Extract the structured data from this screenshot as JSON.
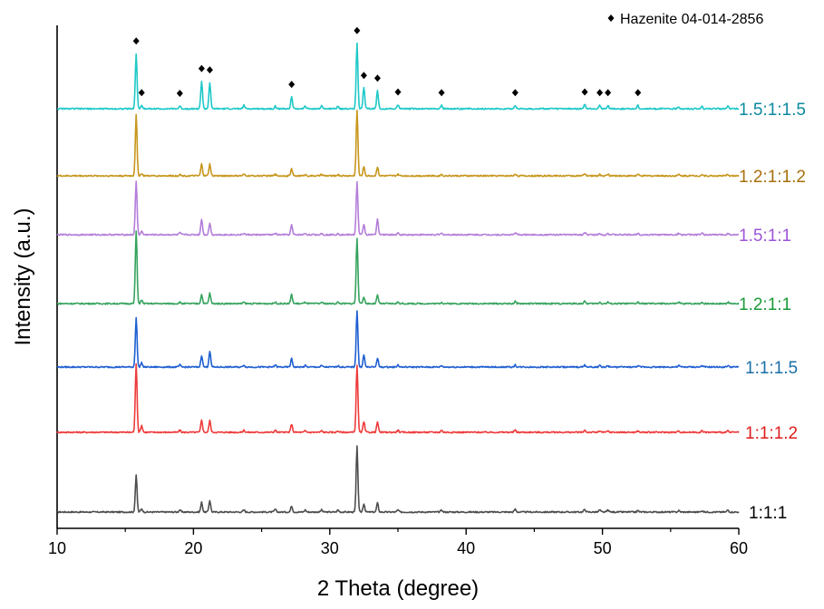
{
  "chart_data": {
    "type": "line",
    "title": "",
    "xlabel": "2 Theta (degree)",
    "ylabel": "Intensity (a.u.)",
    "xlim": [
      10,
      60
    ],
    "xticks": [
      "10",
      "20",
      "30",
      "40",
      "50",
      "60"
    ],
    "ytick_labels_shown": false,
    "grid": false,
    "offset_stacked": true,
    "legend": {
      "position": "top-right",
      "marker": "diamond",
      "label": "Hazenite 04-014-2856",
      "color": "#000000"
    },
    "reference_peaks": {
      "name": "Hazenite 04-014-2856",
      "two_theta": [
        15.8,
        16.2,
        19.0,
        20.6,
        21.2,
        27.2,
        32.0,
        32.5,
        33.5,
        35.0,
        38.2,
        43.6,
        48.7,
        49.8,
        50.4,
        52.6
      ]
    },
    "peaks_two_theta": [
      15.8,
      16.2,
      19.0,
      20.6,
      21.2,
      23.7,
      26.0,
      27.2,
      28.2,
      29.4,
      30.6,
      32.0,
      32.5,
      33.5,
      35.0,
      38.2,
      43.6,
      48.7,
      49.8,
      50.4,
      52.6,
      55.6,
      57.3,
      59.2
    ],
    "series": [
      {
        "name": "1:1:1",
        "color": "#4d4d4d",
        "peak_intensity": [
          0.53,
          0.05,
          0.03,
          0.14,
          0.17,
          0.03,
          0.04,
          0.09,
          0.03,
          0.03,
          0.03,
          0.95,
          0.12,
          0.13,
          0.03,
          0.03,
          0.04,
          0.04,
          0.03,
          0.03,
          0.02,
          0.02,
          0.02,
          0.03
        ]
      },
      {
        "name": "1:1:1.2",
        "color": "#ee3b3b",
        "peak_intensity": [
          1.0,
          0.1,
          0.03,
          0.18,
          0.17,
          0.03,
          0.03,
          0.12,
          0.02,
          0.02,
          0.02,
          0.98,
          0.15,
          0.15,
          0.03,
          0.03,
          0.03,
          0.03,
          0.02,
          0.02,
          0.02,
          0.02,
          0.02,
          0.02
        ]
      },
      {
        "name": "1:1:1.5",
        "color": "#1f5fd1",
        "peak_intensity": [
          0.72,
          0.06,
          0.03,
          0.17,
          0.23,
          0.03,
          0.03,
          0.12,
          0.02,
          0.02,
          0.02,
          0.82,
          0.17,
          0.13,
          0.03,
          0.02,
          0.03,
          0.03,
          0.02,
          0.02,
          0.02,
          0.02,
          0.02,
          0.02
        ]
      },
      {
        "name": "1.2:1:1",
        "color": "#36a35e",
        "peak_intensity": [
          1.05,
          0.05,
          0.02,
          0.13,
          0.15,
          0.02,
          0.02,
          0.13,
          0.02,
          0.02,
          0.02,
          0.95,
          0.1,
          0.12,
          0.02,
          0.02,
          0.03,
          0.03,
          0.02,
          0.02,
          0.02,
          0.02,
          0.02,
          0.02
        ]
      },
      {
        "name": "1.5:1:1",
        "color": "#b47ed9",
        "peak_intensity": [
          0.77,
          0.05,
          0.03,
          0.23,
          0.17,
          0.02,
          0.02,
          0.14,
          0.02,
          0.02,
          0.02,
          0.77,
          0.15,
          0.23,
          0.02,
          0.02,
          0.03,
          0.03,
          0.02,
          0.02,
          0.02,
          0.02,
          0.02,
          0.02
        ]
      },
      {
        "name": "1.2:1:1.2",
        "color": "#c7961c",
        "peak_intensity": [
          0.88,
          0.03,
          0.02,
          0.17,
          0.17,
          0.02,
          0.02,
          0.1,
          0.02,
          0.02,
          0.02,
          0.95,
          0.13,
          0.13,
          0.02,
          0.02,
          0.03,
          0.03,
          0.02,
          0.02,
          0.02,
          0.02,
          0.02,
          0.02
        ]
      },
      {
        "name": "1.5:1:1.5",
        "color": "#1ec8c8",
        "peak_intensity": [
          0.8,
          0.05,
          0.04,
          0.4,
          0.38,
          0.05,
          0.04,
          0.17,
          0.04,
          0.04,
          0.04,
          0.95,
          0.3,
          0.26,
          0.06,
          0.05,
          0.05,
          0.06,
          0.05,
          0.05,
          0.05,
          0.03,
          0.03,
          0.04
        ]
      }
    ]
  },
  "series_label_colors": [
    "#000000",
    "#e01c1c",
    "#1a6fa8",
    "#1a9a38",
    "#9c55d8",
    "#a66f0a",
    "#0c8aa0"
  ]
}
